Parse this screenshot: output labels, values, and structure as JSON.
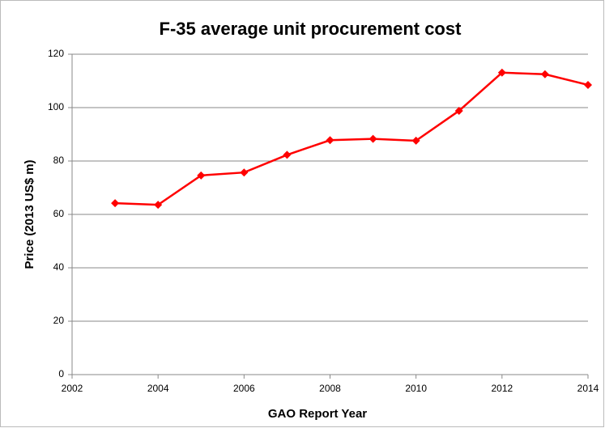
{
  "chart_data": {
    "type": "line",
    "title": "F-35 average unit procurement cost",
    "x_label": "GAO Report Year",
    "y_label": "Price  (2013 US$ m)",
    "x": [
      2003,
      2004,
      2005,
      2006,
      2007,
      2008,
      2009,
      2010,
      2011,
      2012,
      2013,
      2014
    ],
    "series": [
      {
        "name": "Price",
        "color": "#ff0000",
        "values": [
          64.2,
          63.6,
          74.6,
          75.7,
          82.3,
          87.8,
          88.3,
          87.6,
          98.8,
          113.1,
          112.5,
          108.5
        ]
      }
    ],
    "xlim": [
      2002,
      2014
    ],
    "xticks": [
      2002,
      2004,
      2006,
      2008,
      2010,
      2012,
      2014
    ],
    "ylim": [
      0,
      120
    ],
    "yticks": [
      0,
      20,
      40,
      60,
      80,
      100,
      120
    ],
    "grid": true
  }
}
